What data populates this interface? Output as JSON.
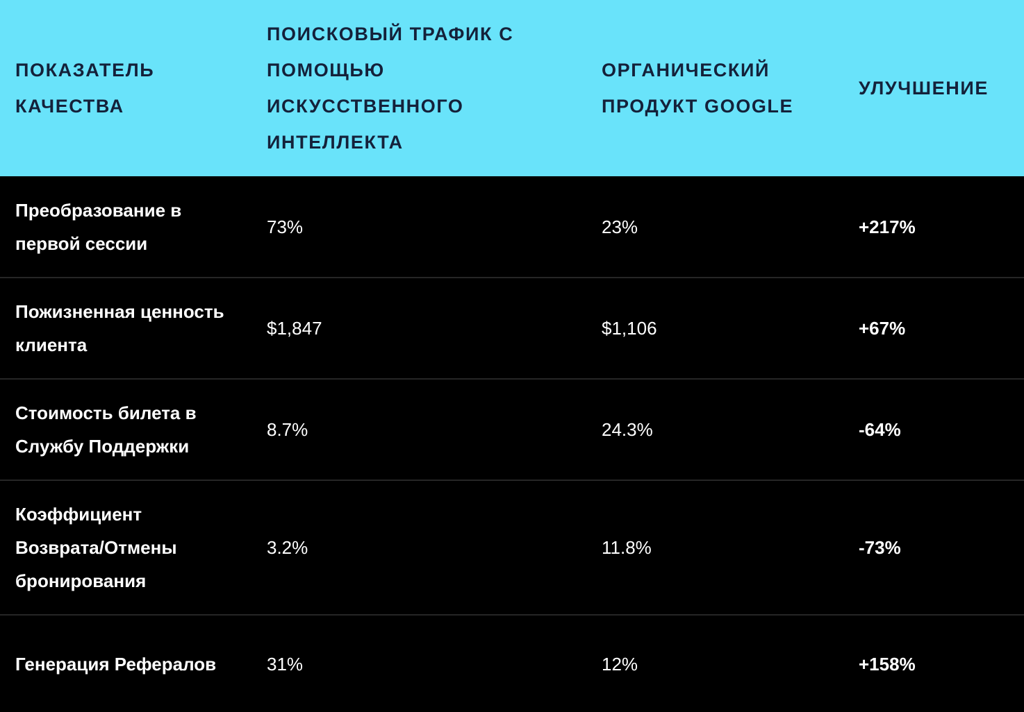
{
  "table": {
    "header": [
      "ПОКАЗАТЕЛЬ КАЧЕСТВА",
      "ПОИСКОВЫЙ ТРАФИК С ПОМОЩЬЮ ИСКУССТВЕННОГО ИНТЕЛЛЕКТА",
      "ОРГАНИЧЕСКИЙ ПРОДУКТ GOOGLE",
      "УЛУЧШЕНИЕ"
    ],
    "rows": [
      [
        "Преобразование в первой сессии",
        "73%",
        "23%",
        "+217%"
      ],
      [
        "Пожизненная ценность клиента",
        "$1,847",
        "$1,106",
        "+67%"
      ],
      [
        "Стоимость билета в Службу Поддержки",
        "8.7%",
        "24.3%",
        "-64%"
      ],
      [
        "Коэффициент Возврата/Отмены бронирования",
        "3.2%",
        "11.8%",
        "-73%"
      ],
      [
        "Генерация Рефералов",
        "31%",
        "12%",
        "+158%"
      ]
    ]
  }
}
